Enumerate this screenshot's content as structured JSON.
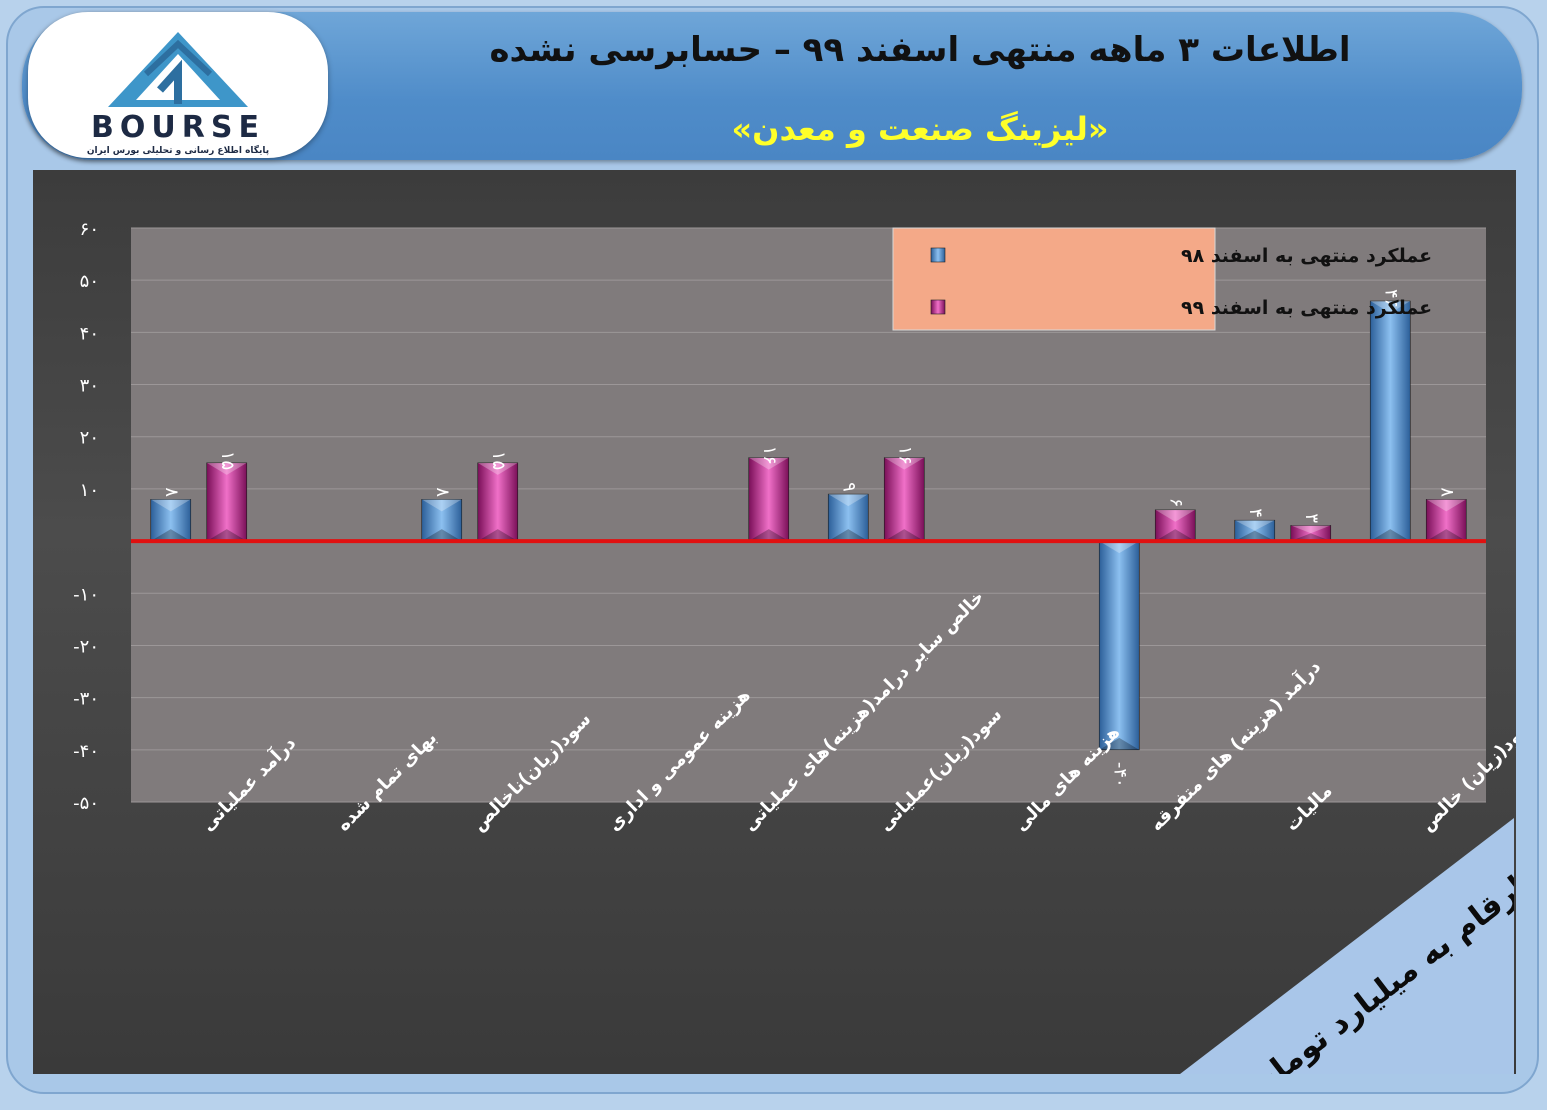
{
  "header": {
    "title": "اطلاعات ۳ ماهه منتهی اسفند ۹۹ – حسابرسی نشده",
    "subtitle": "«لیزینگ صنعت و معدن»"
  },
  "logo": {
    "name": "BOURSE",
    "tagline": "پایگاه اطلاع رسانی و تحلیلی بورس ایران"
  },
  "units_label": "ارقام به میلیارد تومان",
  "colors": {
    "series1": "#4f8fd6",
    "series2": "#c2248e",
    "zero_line": "#e01010",
    "plot_bg": "#807b7c",
    "legend_bg": "#f4a988"
  },
  "chart_data": {
    "type": "bar",
    "title": "",
    "xlabel": "",
    "ylabel": "",
    "ylim": [
      -50,
      60
    ],
    "yticks": [
      "۶۰",
      "۵۰",
      "۴۰",
      "۳۰",
      "۲۰",
      "۱۰",
      "",
      "-۱۰",
      "-۲۰",
      "-۳۰",
      "-۴۰",
      "-۵۰"
    ],
    "ytick_values": [
      60,
      50,
      40,
      30,
      20,
      10,
      0,
      -10,
      -20,
      -30,
      -40,
      -50
    ],
    "grid": true,
    "legend_position": "top-center",
    "categories": [
      "درآمد عملیاتی",
      "بهای تمام شده",
      "سود(زیان)ناخالص",
      "هزینه عمومی و اداری",
      "خالص سایر درامد(هزینه)های عملیاتی",
      "سود(زیان)عملیاتی",
      "هزینه های مالی",
      "درآمد (هزینه) های متفرقه",
      "مالیات",
      "سود(زیان) خالص"
    ],
    "series": [
      {
        "name": "عملکرد منتهی به اسفند ۹۸",
        "values": [
          8,
          null,
          8,
          null,
          null,
          9,
          null,
          -40,
          4,
          46
        ],
        "labels": [
          "۸",
          "",
          "۸",
          "",
          "",
          "۹",
          "",
          "-۴۰",
          "۴",
          "۴۶"
        ]
      },
      {
        "name": "عملکرد منتهی به اسفند ۹۹",
        "values": [
          15,
          null,
          15,
          null,
          16,
          16,
          null,
          6,
          3,
          8
        ],
        "labels": [
          "۱۵",
          "",
          "۱۵",
          "",
          "۱۶",
          "۱۶",
          "",
          "۶",
          "۳",
          "۸"
        ]
      }
    ]
  }
}
